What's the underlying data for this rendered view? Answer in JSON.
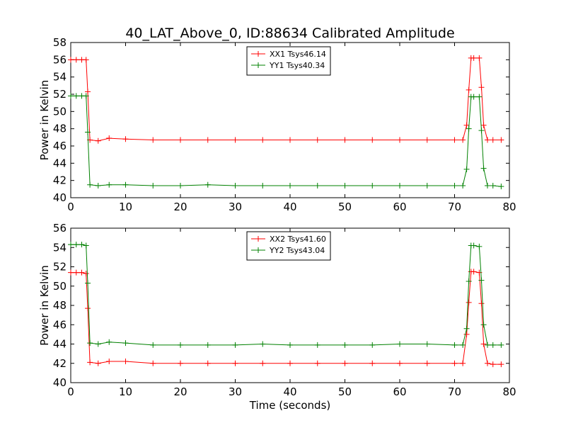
{
  "figure": {
    "title": "40_LAT_Above_0, ID:88634 Calibrated Amplitude"
  },
  "chart_data": [
    {
      "type": "line",
      "title": "40_LAT_Above_0, ID:88634 Calibrated Amplitude",
      "xlabel": "",
      "ylabel": "Power in Kelvin",
      "xlim": [
        0,
        80
      ],
      "ylim": [
        40,
        58
      ],
      "xticks": [
        "0",
        "10",
        "20",
        "30",
        "40",
        "50",
        "60",
        "70",
        "80"
      ],
      "yticks": [
        "40",
        "42",
        "44",
        "46",
        "48",
        "50",
        "52",
        "54",
        "56",
        "58"
      ],
      "grid": false,
      "legend_position": "top-center",
      "marker": "plus",
      "series": [
        {
          "name": "XX1 Tsys46.14",
          "color": "#ff0000",
          "x": [
            0,
            1,
            2,
            2.8,
            3.1,
            3.5,
            5,
            7,
            10,
            15,
            20,
            25,
            30,
            35,
            40,
            45,
            50,
            55,
            60,
            65,
            70,
            71.5,
            72.2,
            72.6,
            73,
            73.5,
            74.5,
            74.9,
            75.3,
            76,
            77,
            78.5
          ],
          "y": [
            56.0,
            56.0,
            56.0,
            56.0,
            52.3,
            46.7,
            46.6,
            46.9,
            46.8,
            46.7,
            46.7,
            46.7,
            46.7,
            46.7,
            46.7,
            46.7,
            46.7,
            46.7,
            46.7,
            46.7,
            46.7,
            46.7,
            48.4,
            52.5,
            56.2,
            56.2,
            56.2,
            52.8,
            48.4,
            46.7,
            46.7,
            46.7
          ]
        },
        {
          "name": "YY1 Tsys40.34",
          "color": "#008000",
          "x": [
            0,
            1,
            2,
            2.8,
            3.1,
            3.5,
            5,
            7,
            10,
            15,
            20,
            25,
            30,
            35,
            40,
            45,
            50,
            55,
            60,
            65,
            70,
            71.5,
            72.2,
            72.6,
            73,
            73.5,
            74.5,
            74.9,
            75.3,
            76,
            77,
            78.5
          ],
          "y": [
            51.8,
            51.8,
            51.8,
            51.8,
            47.6,
            41.5,
            41.4,
            41.5,
            41.5,
            41.4,
            41.4,
            41.5,
            41.4,
            41.4,
            41.4,
            41.4,
            41.4,
            41.4,
            41.4,
            41.4,
            41.4,
            41.4,
            43.3,
            48.0,
            51.7,
            51.7,
            51.7,
            47.8,
            43.4,
            41.4,
            41.4,
            41.3
          ]
        }
      ]
    },
    {
      "type": "line",
      "title": "",
      "xlabel": "Time (seconds)",
      "ylabel": "Power in Kelvin",
      "xlim": [
        0,
        80
      ],
      "ylim": [
        40,
        56
      ],
      "xticks": [
        "0",
        "10",
        "20",
        "30",
        "40",
        "50",
        "60",
        "70",
        "80"
      ],
      "yticks": [
        "40",
        "42",
        "44",
        "46",
        "48",
        "50",
        "52",
        "54",
        "56"
      ],
      "grid": false,
      "legend_position": "top-center",
      "marker": "plus",
      "series": [
        {
          "name": "XX2 Tsys41.60",
          "color": "#ff0000",
          "x": [
            0,
            1,
            2,
            2.8,
            3.1,
            3.5,
            5,
            7,
            10,
            15,
            20,
            25,
            30,
            35,
            40,
            45,
            50,
            55,
            60,
            65,
            70,
            71.5,
            72.2,
            72.6,
            73,
            73.5,
            74.5,
            74.9,
            75.3,
            76,
            77,
            78.5
          ],
          "y": [
            51.4,
            51.4,
            51.4,
            51.3,
            47.7,
            42.1,
            42.0,
            42.2,
            42.2,
            42.0,
            42.0,
            42.0,
            42.0,
            42.0,
            42.0,
            42.0,
            42.0,
            42.0,
            42.0,
            42.0,
            42.0,
            42.0,
            45.0,
            48.3,
            51.5,
            51.5,
            51.4,
            48.2,
            44.0,
            42.0,
            41.9,
            41.9
          ]
        },
        {
          "name": "YY2 Tsys43.04",
          "color": "#008000",
          "x": [
            0,
            1,
            2,
            2.8,
            3.1,
            3.5,
            5,
            7,
            10,
            15,
            20,
            25,
            30,
            35,
            40,
            45,
            50,
            55,
            60,
            65,
            70,
            71.5,
            72.2,
            72.6,
            73,
            73.5,
            74.5,
            74.9,
            75.3,
            76,
            77,
            78.5
          ],
          "y": [
            54.3,
            54.3,
            54.3,
            54.2,
            50.3,
            44.1,
            44.0,
            44.2,
            44.1,
            43.9,
            43.9,
            43.9,
            43.9,
            44.0,
            43.9,
            43.9,
            43.9,
            43.9,
            44.0,
            44.0,
            43.9,
            43.9,
            45.6,
            50.5,
            54.2,
            54.2,
            54.1,
            50.6,
            46.0,
            43.9,
            43.9,
            43.9
          ]
        }
      ]
    }
  ]
}
